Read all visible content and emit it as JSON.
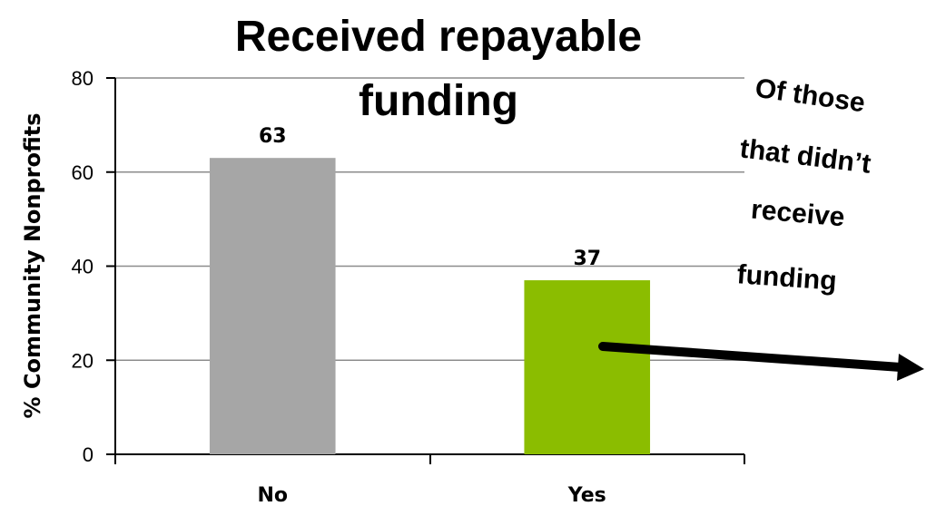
{
  "chart_data": {
    "type": "bar",
    "title_lines": [
      "Received repayable",
      "funding"
    ],
    "ylabel": "% Community Nonprofits",
    "xlabel": "",
    "ylim": [
      0,
      80
    ],
    "yticks": [
      0,
      20,
      40,
      60,
      80
    ],
    "categories": [
      "No",
      "Yes"
    ],
    "values": [
      63,
      37
    ],
    "data_labels": [
      "63",
      "37"
    ],
    "grid": true,
    "bar_colors": [
      "#a6a6a6",
      "#8bbd00"
    ],
    "annotation_lines": [
      "Of those",
      "that didn’t",
      "receive",
      "funding"
    ],
    "annotation_arrow": "right"
  }
}
